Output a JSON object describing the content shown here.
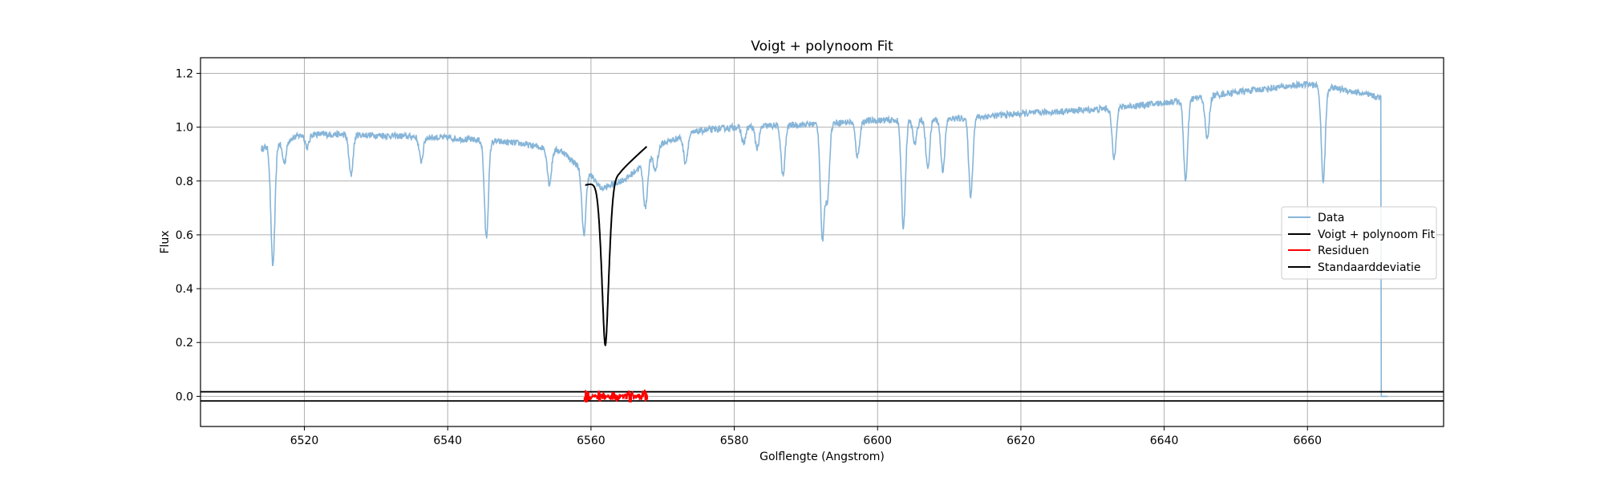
{
  "chart_data": {
    "type": "line",
    "title": "Voigt + polynoom Fit",
    "xlabel": "Golflengte (Angstrom)",
    "ylabel": "Flux",
    "xlim": [
      6505.5,
      6679.0
    ],
    "ylim": [
      -0.112,
      1.258
    ],
    "xticks": [
      6520,
      6540,
      6560,
      6580,
      6600,
      6620,
      6640,
      6660
    ],
    "yticks": [
      0.0,
      0.2,
      0.4,
      0.6,
      0.8,
      1.0,
      1.2
    ],
    "xtick_labels": [
      "6520",
      "6540",
      "6560",
      "6580",
      "6600",
      "6620",
      "6640",
      "6660"
    ],
    "ytick_labels": [
      "0.0",
      "0.2",
      "0.4",
      "0.6",
      "0.8",
      "1.0",
      "1.2"
    ],
    "grid": true,
    "legend_position": "center-right",
    "legend": [
      {
        "label": "Data",
        "color": "#86b5d8"
      },
      {
        "label": "Voigt + polynoom Fit",
        "color": "#000000"
      },
      {
        "label": "Residuen",
        "color": "#ff0000"
      },
      {
        "label": "Standaarddeviatie",
        "color": "#000000"
      }
    ],
    "series": [
      {
        "name": "Data",
        "color": "#86b5d8",
        "x_range": [
          6514.0,
          6671.2
        ],
        "continuum": [
          [
            6514.0,
            0.92
          ],
          [
            6520,
            0.975
          ],
          [
            6530,
            0.97
          ],
          [
            6540,
            0.96
          ],
          [
            6550,
            0.94
          ],
          [
            6556,
            0.91
          ],
          [
            6558,
            0.86
          ],
          [
            6560,
            0.82
          ],
          [
            6561.5,
            0.77
          ],
          [
            6565,
            0.81
          ],
          [
            6568,
            0.88
          ],
          [
            6570,
            0.94
          ],
          [
            6575,
            0.985
          ],
          [
            6580,
            1.0
          ],
          [
            6590,
            1.01
          ],
          [
            6600,
            1.025
          ],
          [
            6610,
            1.03
          ],
          [
            6620,
            1.05
          ],
          [
            6630,
            1.065
          ],
          [
            6640,
            1.09
          ],
          [
            6650,
            1.13
          ],
          [
            6660,
            1.16
          ],
          [
            6665,
            1.14
          ],
          [
            6670,
            1.11
          ]
        ],
        "absorption_lines": [
          [
            6515.6,
            0.45
          ],
          [
            6517.2,
            0.08
          ],
          [
            6520.4,
            0.05
          ],
          [
            6526.5,
            0.15
          ],
          [
            6536.3,
            0.09
          ],
          [
            6545.4,
            0.36
          ],
          [
            6554.2,
            0.13
          ],
          [
            6559.0,
            0.24
          ],
          [
            6567.6,
            0.17
          ],
          [
            6569.0,
            0.07
          ],
          [
            6573.2,
            0.1
          ],
          [
            6581.3,
            0.06
          ],
          [
            6583.2,
            0.08
          ],
          [
            6586.8,
            0.19
          ],
          [
            6592.3,
            0.42
          ],
          [
            6593.0,
            0.27
          ],
          [
            6597.2,
            0.13
          ],
          [
            6603.6,
            0.4
          ],
          [
            6605.2,
            0.09
          ],
          [
            6607.0,
            0.18
          ],
          [
            6609.1,
            0.19
          ],
          [
            6613.0,
            0.29
          ],
          [
            6633.0,
            0.19
          ],
          [
            6643.0,
            0.3
          ],
          [
            6646.0,
            0.16
          ],
          [
            6662.2,
            0.35
          ]
        ],
        "drop_at": 6670.3,
        "drop_to": 0.0,
        "noise": 0.012
      },
      {
        "name": "Voigt + polynoom Fit",
        "color": "#000000",
        "x_range": [
          6559.2,
          6567.8
        ],
        "center": 6562.0,
        "minimum": 0.19,
        "continuum_points": [
          [
            6559.2,
            0.79
          ],
          [
            6564.0,
            0.84
          ],
          [
            6567.8,
            0.93
          ]
        ]
      },
      {
        "name": "Residuen",
        "color": "#ff0000",
        "x_range": [
          6559.0,
          6568.0
        ],
        "amplitude": 0.025
      },
      {
        "name": "Standaarddeviatie",
        "color": "#000000",
        "values": [
          0.017,
          -0.017
        ]
      }
    ]
  }
}
